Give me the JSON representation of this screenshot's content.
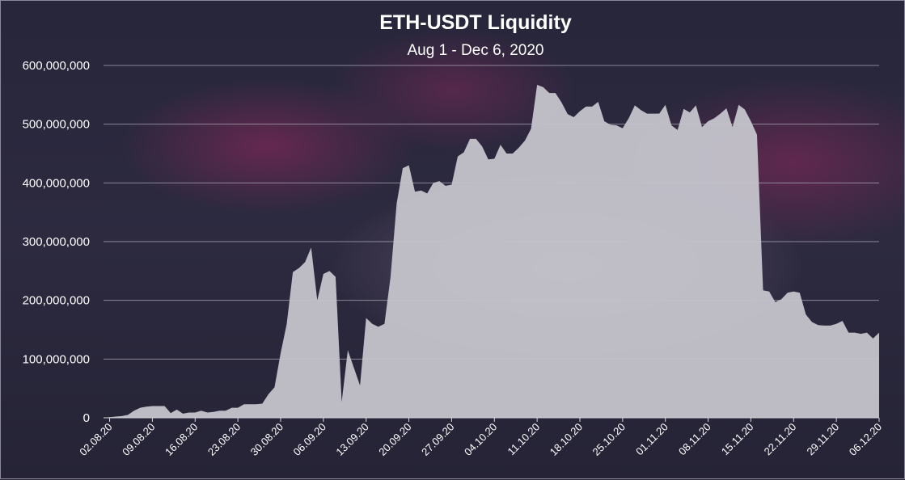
{
  "chart_data": {
    "type": "area",
    "title": "ETH-USDT Liquidity",
    "subtitle": "Aug 1 - Dec 6, 2020",
    "xlabel": "",
    "ylabel": "",
    "ylim": [
      0,
      600000000
    ],
    "grid": true,
    "colors": {
      "area": "#c4c3cb",
      "background": "#2a2838",
      "text": "#ffffff"
    },
    "y_ticks": [
      {
        "value": 0,
        "label": "0"
      },
      {
        "value": 100000000,
        "label": "100,000,000"
      },
      {
        "value": 200000000,
        "label": "200,000,000"
      },
      {
        "value": 300000000,
        "label": "300,000,000"
      },
      {
        "value": 400000000,
        "label": "400,000,000"
      },
      {
        "value": 500000000,
        "label": "500,000,000"
      },
      {
        "value": 600000000,
        "label": "600,000,000"
      }
    ],
    "x_ticks": [
      {
        "day": 1,
        "label": "02.08.20"
      },
      {
        "day": 8,
        "label": "09.08.20"
      },
      {
        "day": 15,
        "label": "16.08.20"
      },
      {
        "day": 22,
        "label": "23.08.20"
      },
      {
        "day": 29,
        "label": "30.08.20"
      },
      {
        "day": 36,
        "label": "06.09.20"
      },
      {
        "day": 43,
        "label": "13.09.20"
      },
      {
        "day": 50,
        "label": "20.09.20"
      },
      {
        "day": 57,
        "label": "27.09.20"
      },
      {
        "day": 64,
        "label": "04.10.20"
      },
      {
        "day": 71,
        "label": "11.10.20"
      },
      {
        "day": 78,
        "label": "18.10.20"
      },
      {
        "day": 85,
        "label": "25.10.20"
      },
      {
        "day": 92,
        "label": "01.11.20"
      },
      {
        "day": 99,
        "label": "08.11.20"
      },
      {
        "day": 106,
        "label": "15.11.20"
      },
      {
        "day": 113,
        "label": "22.11.20"
      },
      {
        "day": 120,
        "label": "29.11.20"
      },
      {
        "day": 127,
        "label": "06.12.20"
      }
    ],
    "x_domain": [
      0,
      127
    ],
    "series": [
      {
        "values": [
          0,
          1000000,
          2000000,
          3000000,
          5000000,
          12000000,
          17000000,
          19000000,
          20000000,
          20000000,
          20000000,
          8000000,
          14000000,
          7000000,
          9000000,
          9000000,
          12000000,
          9000000,
          10000000,
          12000000,
          12000000,
          17000000,
          17000000,
          23000000,
          23000000,
          23000000,
          24000000,
          40000000,
          52000000,
          110000000,
          160000000,
          248000000,
          255000000,
          265000000,
          290000000,
          200000000,
          245000000,
          250000000,
          240000000,
          27000000,
          115000000,
          85000000,
          55000000,
          170000000,
          160000000,
          155000000,
          160000000,
          240000000,
          365000000,
          425000000,
          430000000,
          385000000,
          387000000,
          382000000,
          400000000,
          403000000,
          395000000,
          397000000,
          445000000,
          452000000,
          475000000,
          475000000,
          462000000,
          440000000,
          441000000,
          465000000,
          450000000,
          450000000,
          460000000,
          472000000,
          492000000,
          567000000,
          563000000,
          553000000,
          553000000,
          537000000,
          517000000,
          512000000,
          522000000,
          530000000,
          530000000,
          538000000,
          505000000,
          499000000,
          498000000,
          493000000,
          510000000,
          532000000,
          524000000,
          518000000,
          518000000,
          518000000,
          533000000,
          498000000,
          490000000,
          526000000,
          520000000,
          532000000,
          495000000,
          505000000,
          510000000,
          518000000,
          527000000,
          495000000,
          533000000,
          525000000,
          505000000,
          482000000,
          217000000,
          215000000,
          197000000,
          202000000,
          213000000,
          215000000,
          213000000,
          176000000,
          163000000,
          158000000,
          157000000,
          157000000,
          160000000,
          165000000,
          145000000,
          145000000,
          143000000,
          145000000,
          135000000,
          145000000
        ]
      }
    ]
  }
}
